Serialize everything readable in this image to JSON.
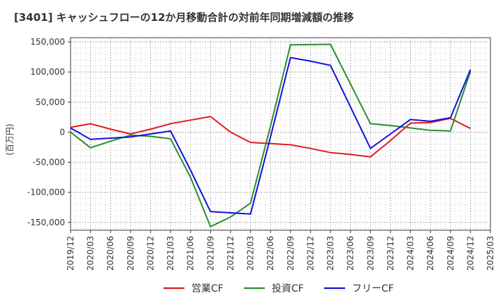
{
  "chart_data": {
    "type": "line",
    "title": "[3401]  キャッシュフローの12か月移動合計の対前年同期増減額の推移",
    "ylabel": "(百万円)",
    "xlabel": "",
    "x_tick_labels": [
      "2019/12",
      "2020/03",
      "2020/06",
      "2020/09",
      "2020/12",
      "2021/03",
      "2021/06",
      "2021/09",
      "2021/12",
      "2022/03",
      "2022/06",
      "2022/09",
      "2022/12",
      "2023/03",
      "2023/06",
      "2023/09",
      "2023/12",
      "2024/03",
      "2024/06",
      "2024/09",
      "2024/12",
      "2025/03"
    ],
    "y_ticks": [
      150000,
      100000,
      50000,
      0,
      -50000,
      -100000,
      -150000
    ],
    "y_tick_labels": [
      "150,000",
      "100,000",
      "50,000",
      "0",
      "-50,000",
      "-100,000",
      "-150,000"
    ],
    "ylim": [
      -163000,
      157000
    ],
    "grid": true,
    "legend_position": "bottom",
    "series": [
      {
        "name": "営業CF",
        "color": "#e31a1c",
        "values": [
          8000,
          14000,
          5000,
          -3000,
          5000,
          14000,
          20000,
          26000,
          0,
          -17000,
          -19000,
          -21000,
          -27000,
          -34000,
          -37000,
          -41000,
          -14000,
          15000,
          16000,
          23000,
          6000,
          null
        ]
      },
      {
        "name": "投資CF",
        "color": "#2e8b2e",
        "values": [
          0,
          -26000,
          -15000,
          -5000,
          -7000,
          -11000,
          -75000,
          -157000,
          -141000,
          -118000,
          10000,
          145000,
          145500,
          146000,
          80000,
          14000,
          11000,
          7000,
          3000,
          2000,
          101000,
          null
        ]
      },
      {
        "name": "フリーCF",
        "color": "#1010dd",
        "values": [
          7000,
          -12000,
          -10000,
          -8000,
          -3000,
          2000,
          -63000,
          -132000,
          -134000,
          -136000,
          -8000,
          124000,
          118000,
          111000,
          42000,
          -27000,
          -3000,
          21000,
          18000,
          24000,
          104000,
          null
        ]
      }
    ]
  }
}
